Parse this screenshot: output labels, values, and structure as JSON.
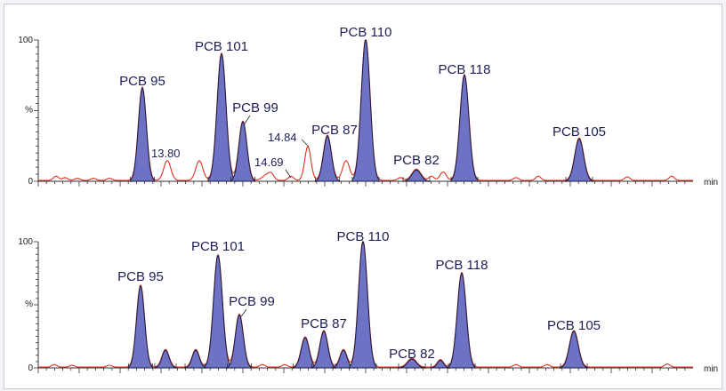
{
  "chart_data": [
    {
      "type": "line",
      "y_unit": "%",
      "x_unit": "min",
      "y_ticks": [
        "100",
        "%",
        "0"
      ],
      "ylim": [
        0,
        100
      ],
      "trace_color": "#e0301e",
      "fill_color": "#6e72c4",
      "peaks": [
        {
          "name": "PCB 95",
          "height": 66,
          "filled": true
        },
        {
          "name": "",
          "height": 14,
          "filled": false
        },
        {
          "name": "",
          "height": 14,
          "filled": false
        },
        {
          "name": "PCB 101",
          "height": 90,
          "filled": true
        },
        {
          "name": "PCB 99",
          "height": 42,
          "filled": true
        },
        {
          "name": "",
          "height": 4,
          "filled": false
        },
        {
          "name": "",
          "height": 24,
          "filled": false
        },
        {
          "name": "PCB 87",
          "height": 32,
          "filled": true
        },
        {
          "name": "",
          "height": 14,
          "filled": false
        },
        {
          "name": "PCB 110",
          "height": 100,
          "filled": true
        },
        {
          "name": "PCB 82",
          "height": 8,
          "filled": true
        },
        {
          "name": "",
          "height": 6,
          "filled": false
        },
        {
          "name": "PCB 118",
          "height": 75,
          "filled": true
        },
        {
          "name": "PCB 105",
          "height": 30,
          "filled": true
        }
      ],
      "annotations": [
        "13.80",
        "14.69",
        "14.84"
      ]
    },
    {
      "type": "line",
      "y_unit": "%",
      "x_unit": "min",
      "y_ticks": [
        "100",
        "%",
        "0"
      ],
      "ylim": [
        0,
        100
      ],
      "trace_color": "#e0301e",
      "fill_color": "#6e72c4",
      "peaks": [
        {
          "name": "PCB 95",
          "height": 65,
          "filled": true
        },
        {
          "name": "",
          "height": 14,
          "filled": true
        },
        {
          "name": "",
          "height": 14,
          "filled": true
        },
        {
          "name": "PCB 101",
          "height": 89,
          "filled": true
        },
        {
          "name": "PCB 99",
          "height": 42,
          "filled": true
        },
        {
          "name": "",
          "height": 24,
          "filled": true
        },
        {
          "name": "PCB 87",
          "height": 29,
          "filled": true
        },
        {
          "name": "",
          "height": 14,
          "filled": true
        },
        {
          "name": "PCB 110",
          "height": 100,
          "filled": true
        },
        {
          "name": "PCB 82",
          "height": 7,
          "filled": true
        },
        {
          "name": "",
          "height": 6,
          "filled": true
        },
        {
          "name": "PCB 118",
          "height": 75,
          "filled": true
        },
        {
          "name": "PCB 105",
          "height": 29,
          "filled": true
        }
      ]
    }
  ]
}
